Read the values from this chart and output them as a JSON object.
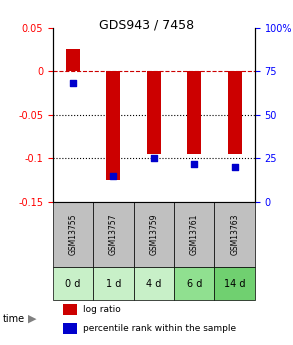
{
  "title": "GDS943 / 7458",
  "categories": [
    "GSM13755",
    "GSM13757",
    "GSM13759",
    "GSM13761",
    "GSM13763"
  ],
  "time_labels": [
    "0 d",
    "1 d",
    "4 d",
    "6 d",
    "14 d"
  ],
  "log_ratio": [
    0.025,
    -0.125,
    -0.095,
    -0.095,
    -0.095
  ],
  "percentile_rank": [
    68,
    15,
    25,
    22,
    20
  ],
  "bar_color": "#cc0000",
  "dot_color": "#0000cc",
  "ylim_left": [
    -0.15,
    0.05
  ],
  "ylim_right": [
    0,
    100
  ],
  "yticks_left": [
    0.05,
    0,
    -0.05,
    -0.1,
    -0.15
  ],
  "yticks_right": [
    100,
    75,
    50,
    25,
    0
  ],
  "gsm_bg": "#c0c0c0",
  "time_bg_colors": [
    "#c8f0c8",
    "#c8f0c8",
    "#c8f0c8",
    "#90e090",
    "#70d070"
  ],
  "legend_log_ratio": "log ratio",
  "legend_percentile": "percentile rank within the sample"
}
